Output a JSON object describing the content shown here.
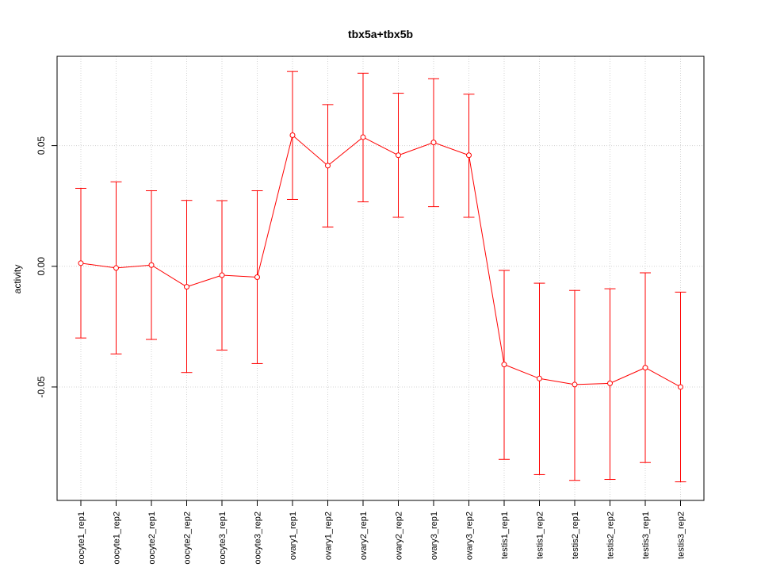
{
  "chart_data": {
    "type": "line",
    "title": "tbx5a+tbx5b",
    "xlabel": "",
    "ylabel": "activity",
    "ylim": [
      -0.097,
      0.087
    ],
    "y_ticks": [
      0.05,
      0.0,
      -0.05
    ],
    "y_tick_labels": [
      "0.05",
      "0.00",
      "-0.05"
    ],
    "grid": true,
    "color": "#ff0000",
    "categories": [
      "oocyte1_rep1",
      "oocyte1_rep2",
      "oocyte2_rep1",
      "oocyte2_rep2",
      "oocyte3_rep1",
      "oocyte3_rep2",
      "ovary1_rep1",
      "ovary1_rep2",
      "ovary2_rep1",
      "ovary2_rep2",
      "ovary3_rep1",
      "ovary3_rep2",
      "testis1_rep1",
      "testis1_rep2",
      "testis2_rep1",
      "testis2_rep2",
      "testis3_rep1",
      "testis3_rep2"
    ],
    "series": [
      {
        "values": [
          0.0013,
          -0.0007,
          0.0005,
          -0.0085,
          -0.0037,
          -0.0045,
          0.0543,
          0.0417,
          0.0535,
          0.046,
          0.0513,
          0.046,
          -0.0407,
          -0.0465,
          -0.049,
          -0.0485,
          -0.042,
          -0.05
        ],
        "upper": [
          0.0323,
          0.035,
          0.0313,
          0.0273,
          0.0272,
          0.0313,
          0.0807,
          0.067,
          0.08,
          0.0717,
          0.0777,
          0.0713,
          -0.0017,
          -0.007,
          -0.01,
          -0.0093,
          -0.0027,
          -0.0107
        ],
        "lower": [
          -0.0297,
          -0.0363,
          -0.0303,
          -0.044,
          -0.0347,
          -0.0403,
          0.0277,
          0.0163,
          0.0267,
          0.0203,
          0.0247,
          0.0203,
          -0.08,
          -0.0863,
          -0.0887,
          -0.0883,
          -0.0813,
          -0.0893
        ]
      }
    ]
  }
}
